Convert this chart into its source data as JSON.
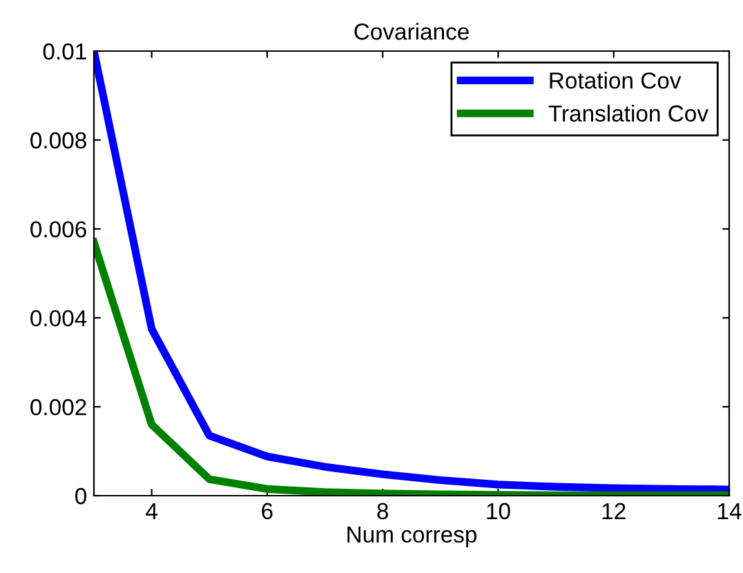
{
  "chart_data": {
    "type": "line",
    "title": "Covariance",
    "xlabel": "Num corresp",
    "x": [
      3,
      4,
      5,
      6,
      7,
      8,
      9,
      10,
      11,
      12,
      13,
      14
    ],
    "series": [
      {
        "name": "Rotation Cov",
        "color": "#0000ff",
        "values": [
          0.01,
          0.00375,
          0.00135,
          0.00088,
          0.00065,
          0.00048,
          0.00035,
          0.00025,
          0.0002,
          0.00017,
          0.00015,
          0.00014
        ]
      },
      {
        "name": "Translation Cov",
        "color": "#008000",
        "values": [
          0.0057,
          0.0016,
          0.00037,
          0.00015,
          8e-05,
          5e-05,
          3e-05,
          2e-05,
          1e-05,
          1e-05,
          1e-05,
          1e-05
        ]
      }
    ],
    "xlim": [
      3,
      14
    ],
    "xticks": [
      4,
      6,
      8,
      10,
      12,
      14
    ],
    "ylim": [
      0,
      0.01
    ],
    "yticks": [
      0,
      0.002,
      0.004,
      0.006,
      0.008,
      0.01
    ],
    "grid": false,
    "legend": "top right",
    "marker": "none",
    "line_style": "solid"
  }
}
